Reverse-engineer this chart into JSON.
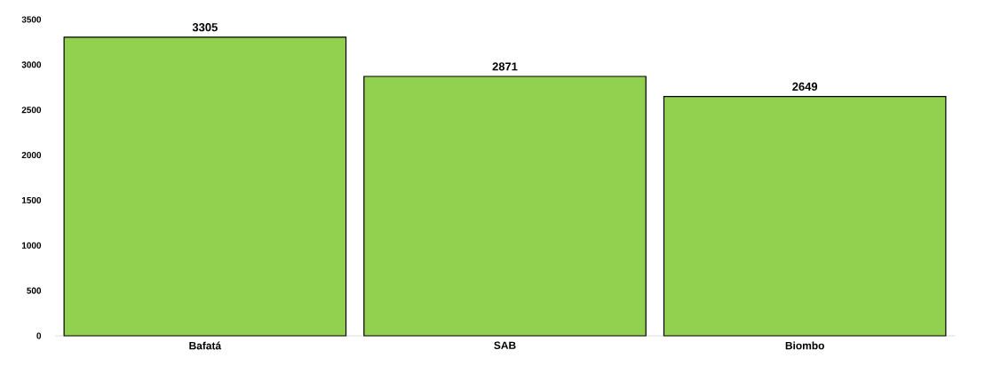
{
  "chart_data": {
    "type": "bar",
    "categories": [
      "Bafatá",
      "SAB",
      "Biombo"
    ],
    "values": [
      3305,
      2871,
      2649
    ],
    "color": "#92d050",
    "ylim": [
      0,
      3500
    ],
    "yticks": [
      0,
      500,
      1000,
      1500,
      2000,
      2500,
      3000,
      3500
    ],
    "data_labels": true
  }
}
